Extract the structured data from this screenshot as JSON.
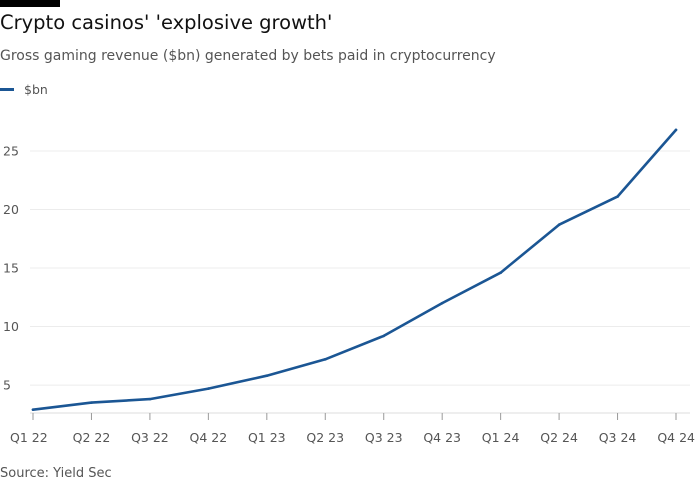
{
  "chart_data": {
    "type": "line",
    "title": "Crypto casinos' 'explosive growth'",
    "subtitle": "Gross gaming revenue ($bn) generated by bets paid in cryptocurrency",
    "source": "Source: Yield Sec",
    "legend_position": "top-left",
    "grid": true,
    "categories": [
      "Q1 22",
      "Q2 22",
      "Q3 22",
      "Q4 22",
      "Q1 23",
      "Q2 23",
      "Q3 23",
      "Q4 23",
      "Q1 24",
      "Q2 24",
      "Q3 24",
      "Q4 24"
    ],
    "series": [
      {
        "name": "$bn",
        "color": "#1b5694",
        "values": [
          2.9,
          3.5,
          3.8,
          4.7,
          5.8,
          7.2,
          9.2,
          12.0,
          14.6,
          18.7,
          21.1,
          26.8
        ]
      }
    ],
    "yticks": [
      "5",
      "10",
      "15",
      "20",
      "25"
    ],
    "ylim": [
      2.7,
      28.5
    ]
  }
}
